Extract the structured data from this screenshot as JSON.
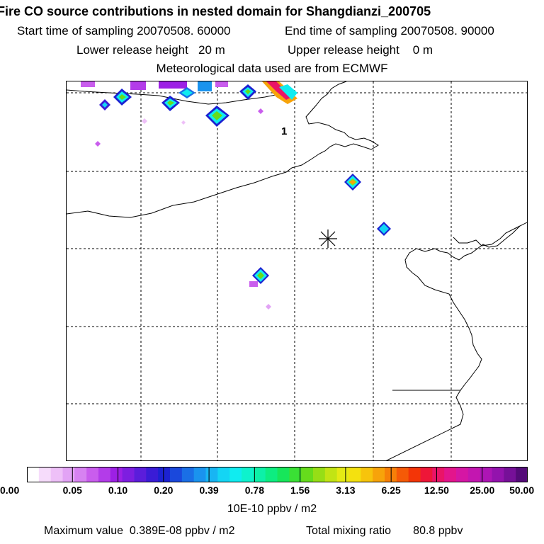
{
  "header": {
    "title": "Fire CO source contributions in nested domain for Shangdianzi_200705",
    "start_time": "Start time of sampling 20070508. 60000",
    "end_time": "End time of sampling 20070508. 90000",
    "lower_height": "Lower release height   20 m",
    "upper_height": "Upper release height    0 m",
    "met_data": "Meteorological data used are from ECMWF"
  },
  "map": {
    "marker_label": "1",
    "receptor_symbol": "asterisk"
  },
  "colorbar": {
    "ticks": [
      "0.00",
      "0.05",
      "0.10",
      "0.20",
      "0.39",
      "0.78",
      "1.56",
      "3.13",
      "6.25",
      "12.50",
      "25.00",
      "50.00"
    ],
    "colors": [
      "#ffffff",
      "#f6dcfb",
      "#eec0f8",
      "#e2a3f5",
      "#d782f1",
      "#c95ded",
      "#b33ce9",
      "#9d20e5",
      "#7d1ee0",
      "#5b1ddb",
      "#3a1cd6",
      "#1c22d2",
      "#1a48dc",
      "#1a6fe6",
      "#1a93ee",
      "#18b5f3",
      "#14d5f4",
      "#10ecf0",
      "#0ef2cd",
      "#0df0a8",
      "#0ded81",
      "#17e65a",
      "#3ae035",
      "#66dc1c",
      "#96de16",
      "#c2e414",
      "#e5ea14",
      "#f4e10f",
      "#f7c40c",
      "#f7a30a",
      "#f68008",
      "#f55a07",
      "#f33507",
      "#ee1638",
      "#ea1467",
      "#e3158c",
      "#d516a4",
      "#c316b0",
      "#ad15b5",
      "#9313ad",
      "#761098",
      "#540b78"
    ],
    "units": "10E-10 ppbv / m2"
  },
  "footer": {
    "max_value": "Maximum value  0.389E-08 ppbv / m2",
    "total_mixing": "Total mixing ratio       80.8 ppbv"
  }
}
